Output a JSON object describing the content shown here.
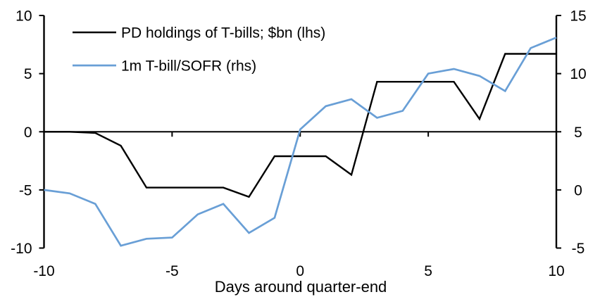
{
  "chart_data": {
    "type": "line",
    "title": "",
    "xlabel": "Days around quarter-end",
    "grid": false,
    "legend_position": "top-left",
    "xlim": [
      -10,
      10
    ],
    "x_ticks": [
      -10,
      -5,
      0,
      5,
      10
    ],
    "left_axis": {
      "min": -10,
      "max": 10,
      "ticks": [
        10,
        5,
        0,
        -5,
        -10
      ]
    },
    "right_axis": {
      "min": -5,
      "max": 15,
      "ticks": [
        15,
        10,
        5,
        0,
        -5
      ]
    },
    "x": [
      -10,
      -9,
      -8,
      -7,
      -6,
      -5,
      -4,
      -3,
      -2,
      -1,
      0,
      1,
      2,
      3,
      4,
      5,
      6,
      7,
      8,
      9,
      10
    ],
    "series": [
      {
        "name": "PD holdings of T-bills; $bn (lhs)",
        "axis": "left",
        "color": "#000000",
        "values": [
          0,
          0,
          -0.1,
          -1.2,
          -4.8,
          -4.8,
          -4.8,
          -4.8,
          -5.6,
          -2.1,
          -2.1,
          -2.1,
          -3.7,
          4.3,
          4.3,
          4.3,
          4.3,
          1.1,
          6.7,
          6.7,
          6.7
        ]
      },
      {
        "name": "1m T-bill/SOFR (rhs)",
        "axis": "right",
        "color": "#699FD6",
        "values": [
          0,
          -0.3,
          -1.2,
          -4.8,
          -4.2,
          -4.1,
          -2.1,
          -1.2,
          -3.7,
          -2.4,
          5.2,
          7.2,
          7.8,
          6.2,
          6.8,
          10.0,
          10.4,
          9.8,
          8.5,
          12.2,
          13.1
        ]
      }
    ]
  }
}
